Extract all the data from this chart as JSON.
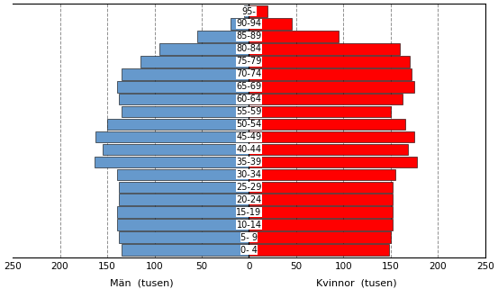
{
  "age_groups": [
    "0- 4",
    "5- 9",
    "10-14",
    "15-19",
    "20-24",
    "25-29",
    "30-34",
    "35-39",
    "40-44",
    "45-49",
    "50-54",
    "55-59",
    "60-64",
    "65-69",
    "70-74",
    "75-79",
    "80-84",
    "85-89",
    "90-94",
    "95-"
  ],
  "men": [
    135,
    138,
    140,
    140,
    138,
    138,
    140,
    163,
    155,
    162,
    150,
    135,
    138,
    140,
    135,
    115,
    95,
    55,
    20,
    5
  ],
  "women": [
    148,
    150,
    152,
    152,
    152,
    152,
    155,
    178,
    168,
    175,
    165,
    150,
    162,
    175,
    172,
    170,
    160,
    95,
    45,
    20
  ],
  "men_color": "#6699cc",
  "women_color": "#ff0000",
  "background_color": "#ffffff",
  "xlim": 250,
  "grid_color": "#909090",
  "xlabel_men": "Män  (tusen)",
  "xlabel_women": "Kvinnor  (tusen)",
  "bar_height": 0.9,
  "edge_color": "#000000",
  "label_fontsize": 7,
  "tick_fontsize": 7.5
}
